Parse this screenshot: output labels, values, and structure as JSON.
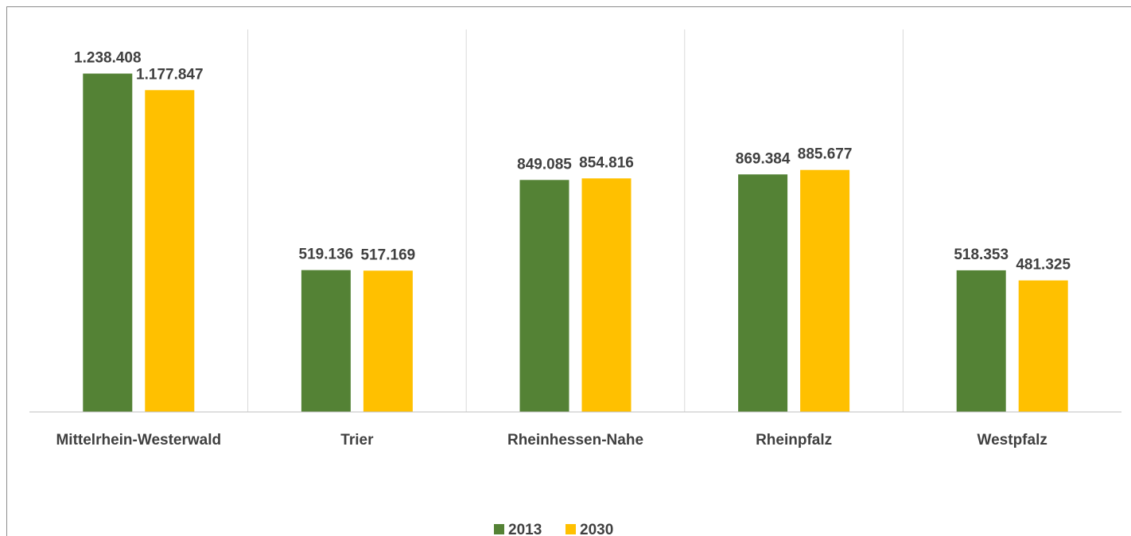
{
  "chart_data": {
    "type": "bar",
    "categories": [
      "Mittelrhein-Westerwald",
      "Trier",
      "Rheinhessen-Nahe",
      "Rheinpfalz",
      "Westpfalz"
    ],
    "series": [
      {
        "name": "2013",
        "color": "#548235",
        "values": [
          1238408,
          519136,
          849085,
          869384,
          518353
        ],
        "value_labels": [
          "1.238.408",
          "519.136",
          "849.085",
          "869.384",
          "518.353"
        ]
      },
      {
        "name": "2030",
        "color": "#ffc000",
        "values": [
          1177847,
          517169,
          854816,
          885677,
          481325
        ],
        "value_labels": [
          "1.177.847",
          "517.169",
          "854.816",
          "885.677",
          "481.325"
        ]
      }
    ],
    "ylim": [
      0,
      1400000
    ],
    "grid": true,
    "legend": "bottom"
  }
}
